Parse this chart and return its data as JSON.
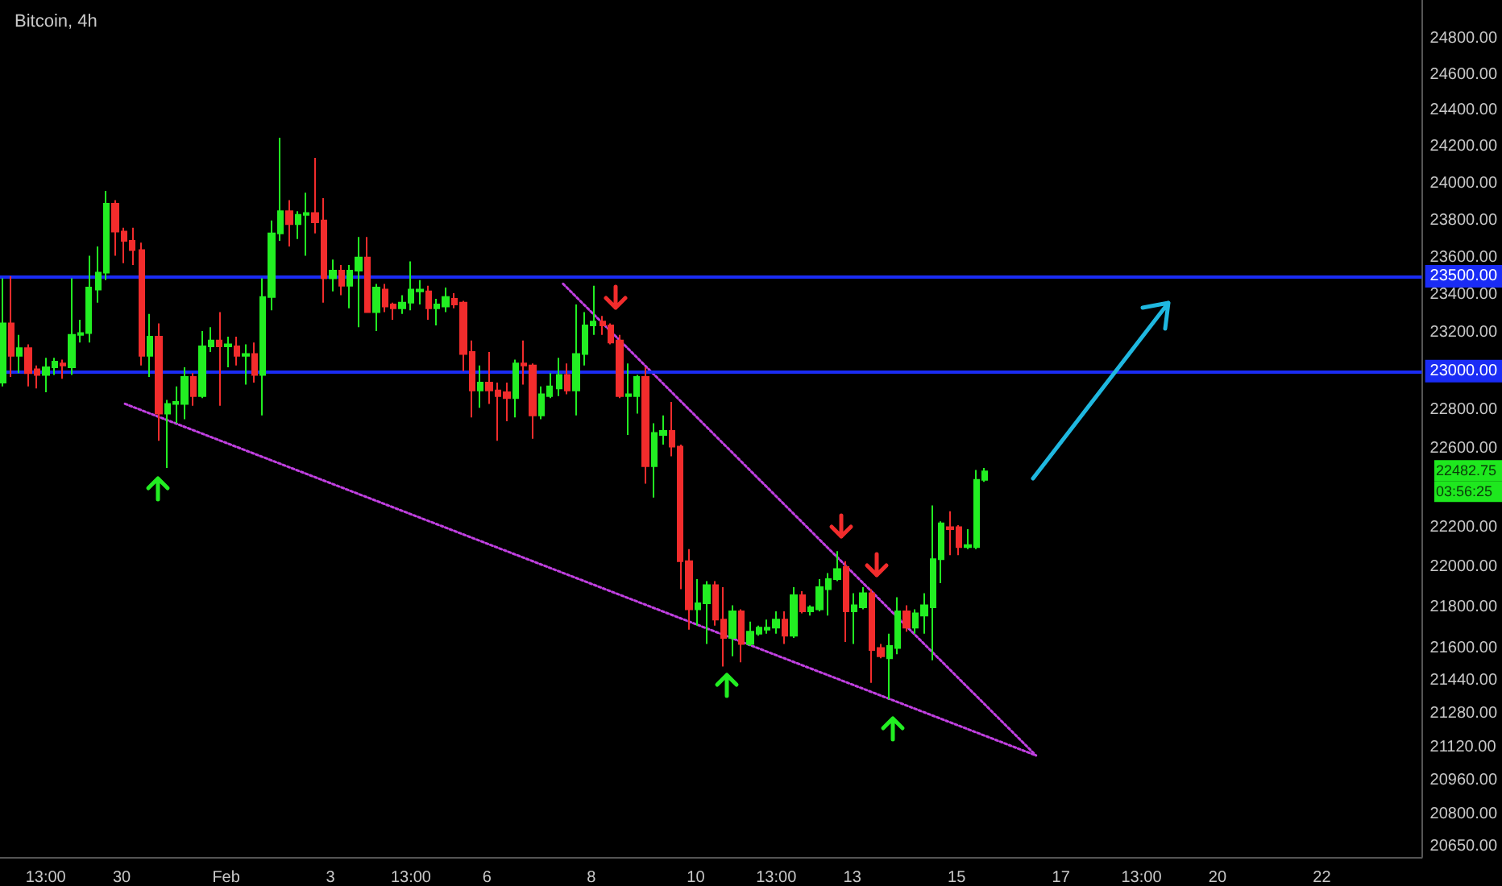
{
  "chart_data": {
    "type": "candlestick",
    "title": "Bitcoin, 4h",
    "log": true,
    "xlim": [
      "--01-27T16:00",
      "--02-23T22:00"
    ],
    "xticks": [
      {
        "value": "--01-28T13:00",
        "label": "13:00"
      },
      {
        "value": "--01-30",
        "label": "30"
      },
      {
        "value": "--02-01",
        "label": "Feb"
      },
      {
        "value": "--02-03",
        "label": "3"
      },
      {
        "value": "--02-04T13:00",
        "label": "13:00"
      },
      {
        "value": "--02-06",
        "label": "6"
      },
      {
        "value": "--02-08",
        "label": "8"
      },
      {
        "value": "--02-10",
        "label": "10"
      },
      {
        "value": "--02-11T13:00",
        "label": "13:00"
      },
      {
        "value": "--02-13",
        "label": "13"
      },
      {
        "value": "--02-15",
        "label": "15"
      },
      {
        "value": "--02-17",
        "label": "17"
      },
      {
        "value": "--02-18T13:00",
        "label": "13:00"
      },
      {
        "value": "--02-20",
        "label": "20"
      },
      {
        "value": "--02-22",
        "label": "22"
      }
    ],
    "ylim": [
      20600,
      25020
    ],
    "yticks": [
      {
        "value": 24800,
        "label": "24800.00"
      },
      {
        "value": 24600,
        "label": "24600.00"
      },
      {
        "value": 24400,
        "label": "24400.00"
      },
      {
        "value": 24200,
        "label": "24200.00"
      },
      {
        "value": 24000,
        "label": "24000.00"
      },
      {
        "value": 23800,
        "label": "23800.00"
      },
      {
        "value": 23600,
        "label": "23600.00"
      },
      {
        "value": 23400,
        "label": "23400.00"
      },
      {
        "value": 23200,
        "label": "23200.00"
      },
      {
        "value": 22800,
        "label": "22800.00"
      },
      {
        "value": 22600,
        "label": "22600.00"
      },
      {
        "value": 22200,
        "label": "22200.00"
      },
      {
        "value": 22000,
        "label": "22000.00"
      },
      {
        "value": 21800,
        "label": "21800.00"
      },
      {
        "value": 21600,
        "label": "21600.00"
      },
      {
        "value": 21440,
        "label": "21440.00"
      },
      {
        "value": 21280,
        "label": "21280.00"
      },
      {
        "value": 21120,
        "label": "21120.00"
      },
      {
        "value": 20960,
        "label": "20960.00"
      },
      {
        "value": 20800,
        "label": "20800.00"
      },
      {
        "value": 20650,
        "label": "20650.00"
      }
    ],
    "x": [
      "--01-27T17:00",
      "--01-27T21:00",
      "--01-28T01:00",
      "--01-28T05:00",
      "--01-28T09:00",
      "--01-28T13:00",
      "--01-28T17:00",
      "--01-28T21:00",
      "--01-29T01:00",
      "--01-29T05:00",
      "--01-29T09:00",
      "--01-29T13:00",
      "--01-29T17:00",
      "--01-29T21:00",
      "--01-30T01:00",
      "--01-30T05:00",
      "--01-30T09:00",
      "--01-30T13:00",
      "--01-30T17:00",
      "--01-30T21:00",
      "--01-31T01:00",
      "--01-31T05:00",
      "--01-31T09:00",
      "--01-31T13:00",
      "--01-31T17:00",
      "--01-31T21:00",
      "--02-01T01:00",
      "--02-01T05:00",
      "--02-01T09:00",
      "--02-01T13:00",
      "--02-01T17:00",
      "--02-01T21:00",
      "--02-02T01:00",
      "--02-02T05:00",
      "--02-02T09:00",
      "--02-02T13:00",
      "--02-02T17:00",
      "--02-02T21:00",
      "--02-03T01:00",
      "--02-03T05:00",
      "--02-03T09:00",
      "--02-03T13:00",
      "--02-03T17:00",
      "--02-03T21:00",
      "--02-04T01:00",
      "--02-04T05:00",
      "--02-04T09:00",
      "--02-04T13:00",
      "--02-04T17:00",
      "--02-04T21:00",
      "--02-05T01:00",
      "--02-05T05:00",
      "--02-05T09:00",
      "--02-05T13:00",
      "--02-05T17:00",
      "--02-05T21:00",
      "--02-06T01:00",
      "--02-06T05:00",
      "--02-06T09:00",
      "--02-06T13:00",
      "--02-06T17:00",
      "--02-06T21:00",
      "--02-07T01:00",
      "--02-07T05:00",
      "--02-07T09:00",
      "--02-07T13:00",
      "--02-07T17:00",
      "--02-07T21:00",
      "--02-08T01:00",
      "--02-08T05:00",
      "--02-08T09:00",
      "--02-08T13:00",
      "--02-08T17:00",
      "--02-08T21:00",
      "--02-09T01:00",
      "--02-09T05:00",
      "--02-09T09:00",
      "--02-09T13:00",
      "--02-09T17:00",
      "--02-09T21:00",
      "--02-10T01:00",
      "--02-10T05:00",
      "--02-10T09:00",
      "--02-10T13:00",
      "--02-10T17:00",
      "--02-10T21:00",
      "--02-11T01:00",
      "--02-11T05:00",
      "--02-11T09:00",
      "--02-11T13:00",
      "--02-11T17:00",
      "--02-11T21:00",
      "--02-12T01:00",
      "--02-12T05:00",
      "--02-12T09:00",
      "--02-12T13:00",
      "--02-12T17:00",
      "--02-12T21:00",
      "--02-13T01:00",
      "--02-13T05:00",
      "--02-13T09:00",
      "--02-13T13:00",
      "--02-13T17:00",
      "--02-13T21:00",
      "--02-14T01:00",
      "--02-14T05:00",
      "--02-14T09:00",
      "--02-14T13:00",
      "--02-14T17:00",
      "--02-14T21:00",
      "--02-15T01:00",
      "--02-15T05:00",
      "--02-15T09:00",
      "--02-15T13:00"
    ],
    "ohlc": [
      [
        22940,
        23490,
        22920,
        23250
      ],
      [
        23250,
        23500,
        22970,
        23080
      ],
      [
        23080,
        23190,
        22990,
        23120
      ],
      [
        23120,
        23140,
        22920,
        22990
      ],
      [
        23010,
        23030,
        22910,
        22980
      ],
      [
        22980,
        23070,
        22890,
        23020
      ],
      [
        23020,
        23070,
        22980,
        23050
      ],
      [
        23040,
        23060,
        22960,
        23030
      ],
      [
        23020,
        23490,
        22980,
        23190
      ],
      [
        23190,
        23270,
        23150,
        23200
      ],
      [
        23200,
        23610,
        23150,
        23440
      ],
      [
        23430,
        23660,
        23360,
        23520
      ],
      [
        23520,
        23960,
        23480,
        23890
      ],
      [
        23890,
        23910,
        23610,
        23740
      ],
      [
        23740,
        23760,
        23570,
        23690
      ],
      [
        23690,
        23760,
        23560,
        23640
      ],
      [
        23640,
        23680,
        23030,
        23080
      ],
      [
        23080,
        23300,
        22970,
        23180
      ],
      [
        23180,
        23250,
        22640,
        22780
      ],
      [
        22780,
        22850,
        22500,
        22830
      ],
      [
        22830,
        22920,
        22730,
        22840
      ],
      [
        22830,
        23020,
        22750,
        22970
      ],
      [
        22970,
        22990,
        22820,
        22870
      ],
      [
        22870,
        23210,
        22860,
        23130
      ],
      [
        23130,
        23230,
        23100,
        23160
      ],
      [
        23160,
        23310,
        22820,
        23130
      ],
      [
        23130,
        23180,
        23020,
        23140
      ],
      [
        23130,
        23180,
        23030,
        23080
      ],
      [
        23080,
        23140,
        22930,
        23090
      ],
      [
        23090,
        23150,
        22940,
        22980
      ],
      [
        22980,
        23490,
        22770,
        23390
      ],
      [
        23390,
        23800,
        23320,
        23730
      ],
      [
        23730,
        24250,
        23690,
        23850
      ],
      [
        23850,
        23910,
        23660,
        23780
      ],
      [
        23780,
        23850,
        23700,
        23830
      ],
      [
        23830,
        23950,
        23610,
        23840
      ],
      [
        23840,
        24140,
        23730,
        23790
      ],
      [
        23800,
        23920,
        23360,
        23490
      ],
      [
        23490,
        23590,
        23420,
        23530
      ],
      [
        23530,
        23560,
        23400,
        23450
      ],
      [
        23450,
        23560,
        23330,
        23530
      ],
      [
        23530,
        23710,
        23230,
        23600
      ],
      [
        23600,
        23710,
        23310,
        23310
      ],
      [
        23310,
        23460,
        23210,
        23440
      ],
      [
        23430,
        23460,
        23310,
        23340
      ],
      [
        23350,
        23360,
        23270,
        23330
      ],
      [
        23330,
        23400,
        23300,
        23360
      ],
      [
        23360,
        23580,
        23320,
        23430
      ],
      [
        23420,
        23480,
        23350,
        23430
      ],
      [
        23420,
        23450,
        23270,
        23330
      ],
      [
        23330,
        23380,
        23240,
        23350
      ],
      [
        23340,
        23440,
        23310,
        23390
      ],
      [
        23380,
        23410,
        23330,
        23350
      ],
      [
        23360,
        23370,
        23000,
        23090
      ],
      [
        23100,
        23160,
        22760,
        22900
      ],
      [
        22900,
        23030,
        22810,
        22940
      ],
      [
        22940,
        23100,
        22830,
        22900
      ],
      [
        22900,
        22940,
        22640,
        22870
      ],
      [
        22890,
        22940,
        22740,
        22860
      ],
      [
        22860,
        23060,
        22760,
        23040
      ],
      [
        23040,
        23160,
        22930,
        23030
      ],
      [
        23030,
        23040,
        22650,
        22770
      ],
      [
        22770,
        22920,
        22750,
        22880
      ],
      [
        22870,
        22990,
        22860,
        22920
      ],
      [
        22910,
        23070,
        22870,
        22980
      ],
      [
        22980,
        23040,
        22880,
        22900
      ],
      [
        22900,
        23350,
        22770,
        23090
      ],
      [
        23090,
        23310,
        23030,
        23240
      ],
      [
        23240,
        23450,
        23190,
        23260
      ],
      [
        23260,
        23290,
        23190,
        23240
      ],
      [
        23240,
        23250,
        23140,
        23150
      ],
      [
        23160,
        23190,
        22860,
        22870
      ],
      [
        22870,
        23040,
        22670,
        22880
      ],
      [
        22870,
        22980,
        22780,
        22970
      ],
      [
        22970,
        23020,
        22420,
        22510
      ],
      [
        22510,
        22730,
        22350,
        22680
      ],
      [
        22670,
        22770,
        22620,
        22690
      ],
      [
        22690,
        22840,
        22560,
        22610
      ],
      [
        22610,
        22620,
        21890,
        22030
      ],
      [
        22030,
        22090,
        21690,
        21790
      ],
      [
        21790,
        21940,
        21710,
        21820
      ],
      [
        21820,
        21930,
        21620,
        21910
      ],
      [
        21910,
        21930,
        21710,
        21740
      ],
      [
        21740,
        21900,
        21510,
        21650
      ],
      [
        21650,
        21810,
        21560,
        21780
      ],
      [
        21780,
        21790,
        21530,
        21620
      ],
      [
        21620,
        21730,
        21610,
        21680
      ],
      [
        21670,
        21710,
        21660,
        21700
      ],
      [
        21690,
        21740,
        21670,
        21700
      ],
      [
        21700,
        21780,
        21670,
        21740
      ],
      [
        21740,
        21780,
        21620,
        21660
      ],
      [
        21660,
        21900,
        21650,
        21860
      ],
      [
        21860,
        21880,
        21770,
        21780
      ],
      [
        21780,
        21810,
        21760,
        21800
      ],
      [
        21790,
        21940,
        21780,
        21900
      ],
      [
        21890,
        21970,
        21760,
        21940
      ],
      [
        21940,
        22080,
        21930,
        21990
      ],
      [
        22000,
        22030,
        21630,
        21780
      ],
      [
        21780,
        21870,
        21620,
        21810
      ],
      [
        21800,
        21900,
        21790,
        21870
      ],
      [
        21870,
        21890,
        21430,
        21590
      ],
      [
        21600,
        21620,
        21550,
        21560
      ],
      [
        21550,
        21670,
        21350,
        21610
      ],
      [
        21600,
        21850,
        21570,
        21780
      ],
      [
        21780,
        21810,
        21680,
        21700
      ],
      [
        21700,
        21790,
        21670,
        21770
      ],
      [
        21760,
        21870,
        21670,
        21810
      ],
      [
        21800,
        22310,
        21540,
        22040
      ],
      [
        22040,
        22230,
        21920,
        22220
      ],
      [
        22200,
        22280,
        22060,
        22190
      ],
      [
        22200,
        22210,
        22060,
        22100
      ],
      [
        22100,
        22190,
        22090,
        22110
      ],
      [
        22100,
        22490,
        22090,
        22440
      ],
      [
        22440,
        22500,
        22430,
        22482.75
      ]
    ],
    "colors": [
      "#22ee22",
      "#f22c2c",
      "#22ee22",
      "#f22c2c",
      "#f22c2c",
      "#22ee22",
      "#22ee22",
      "#f22c2c",
      "#22ee22",
      "#22ee22",
      "#22ee22",
      "#22ee22",
      "#22ee22",
      "#f22c2c",
      "#f22c2c",
      "#f22c2c",
      "#f22c2c",
      "#22ee22",
      "#f22c2c",
      "#22ee22",
      "#22ee22",
      "#22ee22",
      "#f22c2c",
      "#22ee22",
      "#22ee22",
      "#f22c2c",
      "#22ee22",
      "#f22c2c",
      "#22ee22",
      "#f22c2c",
      "#22ee22",
      "#22ee22",
      "#22ee22",
      "#f22c2c",
      "#22ee22",
      "#22ee22",
      "#f22c2c",
      "#f22c2c",
      "#22ee22",
      "#f22c2c",
      "#22ee22",
      "#22ee22",
      "#f22c2c",
      "#22ee22",
      "#f22c2c",
      "#f22c2c",
      "#22ee22",
      "#22ee22",
      "#22ee22",
      "#f22c2c",
      "#22ee22",
      "#22ee22",
      "#f22c2c",
      "#f22c2c",
      "#f22c2c",
      "#22ee22",
      "#f22c2c",
      "#f22c2c",
      "#f22c2c",
      "#22ee22",
      "#f22c2c",
      "#f22c2c",
      "#22ee22",
      "#22ee22",
      "#22ee22",
      "#f22c2c",
      "#22ee22",
      "#22ee22",
      "#22ee22",
      "#f22c2c",
      "#f22c2c",
      "#f22c2c",
      "#22ee22",
      "#22ee22",
      "#f22c2c",
      "#22ee22",
      "#22ee22",
      "#f22c2c",
      "#f22c2c",
      "#f22c2c",
      "#22ee22",
      "#22ee22",
      "#f22c2c",
      "#f22c2c",
      "#22ee22",
      "#f22c2c",
      "#22ee22",
      "#22ee22",
      "#22ee22",
      "#22ee22",
      "#f22c2c",
      "#22ee22",
      "#f22c2c",
      "#22ee22",
      "#22ee22",
      "#22ee22",
      "#22ee22",
      "#f22c2c",
      "#22ee22",
      "#22ee22",
      "#f22c2c",
      "#f22c2c",
      "#22ee22",
      "#22ee22",
      "#f22c2c",
      "#22ee22",
      "#22ee22",
      "#22ee22",
      "#22ee22",
      "#f22c2c",
      "#f22c2c",
      "#22ee22",
      "#22ee22",
      "#22ee22"
    ],
    "series": [
      {
        "type": "line",
        "color": "#c040e0",
        "line_style": "dotted",
        "x": [
          "--01-30T01:30",
          "--02-16T12:30"
        ],
        "values": [
          22830,
          21080
        ]
      },
      {
        "type": "line",
        "color": "#c040e0",
        "line_style": "dotted",
        "x": [
          "--02-07T11:00",
          "--02-16T12:30"
        ],
        "values": [
          23460,
          21080
        ]
      }
    ],
    "ref_lines": [
      {
        "axis": "y",
        "value": 23500,
        "label": "23500.00",
        "color": "#1a2cf5"
      },
      {
        "axis": "y",
        "value": 23000,
        "label": "23000.00",
        "color": "#1a2cf5"
      }
    ],
    "annotations": [
      "22482.75",
      "03:56:25"
    ]
  }
}
